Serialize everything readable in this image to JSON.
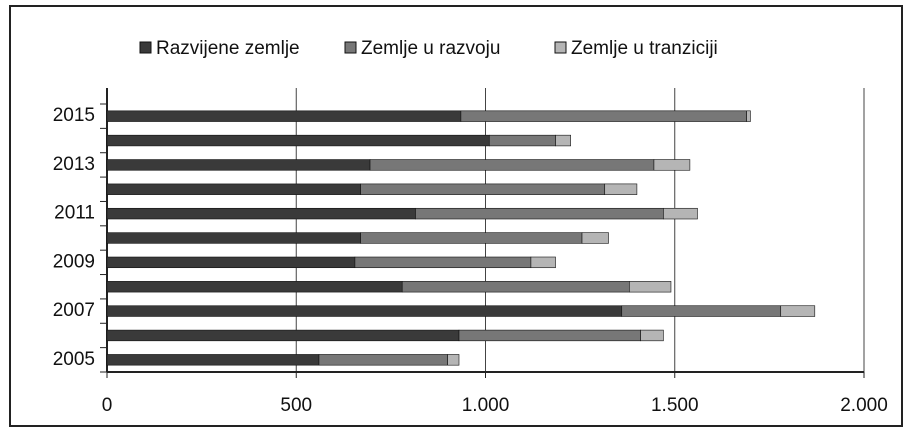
{
  "chart_data": {
    "type": "stacked-barh",
    "categories": [
      "2005",
      null,
      "2007",
      null,
      "2009",
      null,
      "2011",
      null,
      "2013",
      null,
      "2015"
    ],
    "series": [
      {
        "name": "Razvijene zemlje",
        "color": "#3a3a3a",
        "values": [
          560,
          930,
          1360,
          780,
          655,
          670,
          815,
          670,
          695,
          1010,
          935
        ]
      },
      {
        "name": "Zemlje u razvoju",
        "color": "#777777",
        "values": [
          340,
          480,
          420,
          600,
          465,
          585,
          655,
          645,
          750,
          175,
          755
        ]
      },
      {
        "name": "Zemlje u tranziciji",
        "color": "#b5b5b5",
        "values": [
          30,
          60,
          90,
          110,
          65,
          70,
          90,
          85,
          95,
          40,
          10
        ]
      }
    ],
    "xlim": [
      0,
      2000
    ],
    "xticks": [
      0,
      500,
      {
        "value": 1000,
        "label": "1.000"
      },
      {
        "value": 1500,
        "label": "1.500"
      },
      {
        "value": 2000,
        "label": "2.000"
      }
    ],
    "grid": true,
    "legend": "top"
  }
}
